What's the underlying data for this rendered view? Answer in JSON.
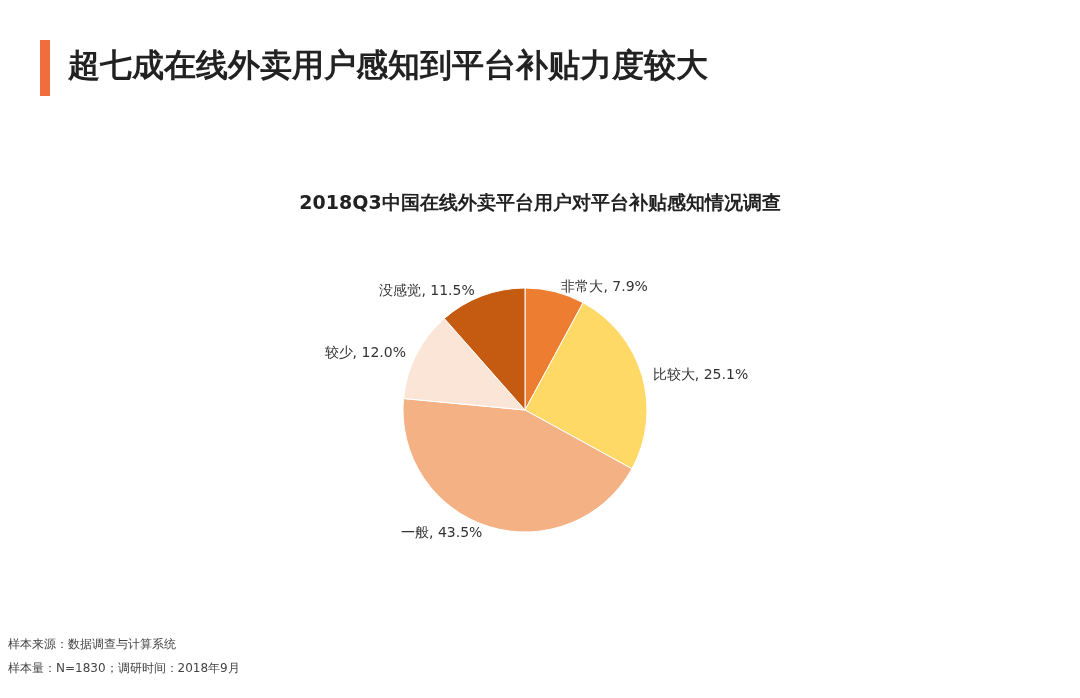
{
  "chart_data": {
    "type": "pie",
    "title": "超七成在线外卖用户感知到平台补贴力度较大",
    "subtitle": "2018Q3中国在线外卖平台用户对平台补贴感知情况调查",
    "categories": [
      "非常大",
      "比较大",
      "一般",
      "较少",
      "没感觉"
    ],
    "values": [
      7.9,
      25.1,
      43.5,
      12.0,
      11.5
    ],
    "value_labels": [
      "7.9%",
      "25.1%",
      "43.5%",
      "12.0%",
      "11.5%"
    ],
    "colors": [
      "#ed7d31",
      "#ffd966",
      "#f4b183",
      "#fbe5d6",
      "#c55a11"
    ],
    "legend": false,
    "annotations": [
      "样本来源：数据调查与计算系统",
      "样本量：N=1830；调研时间：2018年9月"
    ]
  }
}
